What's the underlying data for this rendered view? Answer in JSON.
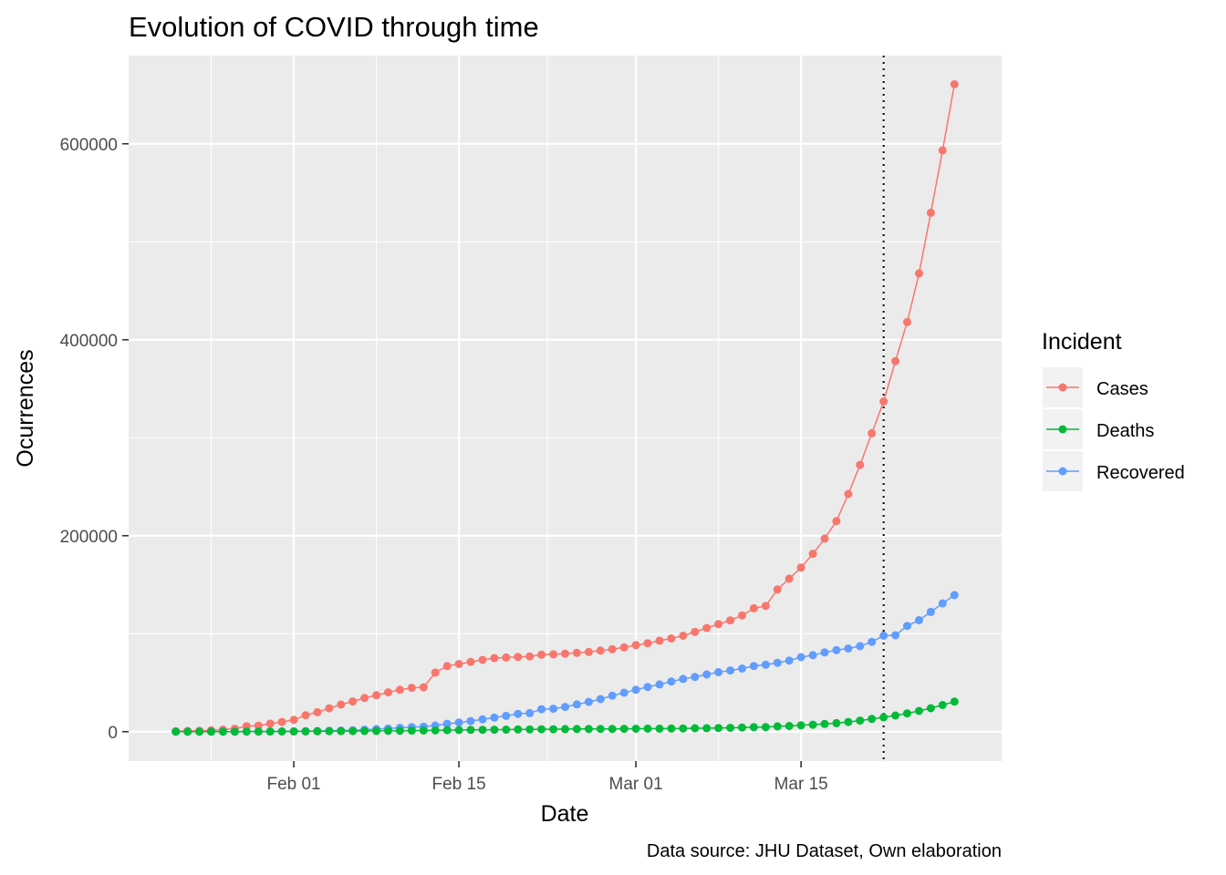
{
  "chart_data": {
    "type": "line",
    "title": "Evolution of COVID through time",
    "xlabel": "Date",
    "ylabel": "Ocurrences",
    "caption": "Data source: JHU Dataset, Own elaboration",
    "legend_title": "Incident",
    "legend_position": "right",
    "grid": true,
    "xlim": [
      "2020-01-18",
      "2020-04-01"
    ],
    "ylim": [
      -30000,
      690000
    ],
    "x_ticks": [
      {
        "date": "2020-02-01",
        "label": "Feb 01"
      },
      {
        "date": "2020-02-15",
        "label": "Feb 15"
      },
      {
        "date": "2020-03-01",
        "label": "Mar 01"
      },
      {
        "date": "2020-03-15",
        "label": "Mar 15"
      }
    ],
    "y_ticks": [
      {
        "value": 0,
        "label": "0"
      },
      {
        "value": 200000,
        "label": "200000"
      },
      {
        "value": 400000,
        "label": "400000"
      },
      {
        "value": 600000,
        "label": "600000"
      }
    ],
    "reference_line": {
      "date": "2020-03-22",
      "style": "dotted",
      "color": "#000000"
    },
    "x_start": "2020-01-22",
    "series": [
      {
        "name": "Cases",
        "color": "#F8766D",
        "values": [
          555,
          654,
          941,
          1434,
          2118,
          2927,
          5578,
          6166,
          8234,
          9927,
          12038,
          16787,
          19881,
          23892,
          27635,
          30794,
          34391,
          37120,
          40150,
          42762,
          44802,
          45221,
          60368,
          66885,
          69030,
          71224,
          73258,
          75136,
          75639,
          76197,
          76819,
          78572,
          78958,
          79561,
          80406,
          81388,
          82746,
          84112,
          86011,
          88369,
          90306,
          92840,
          95120,
          97886,
          101801,
          105847,
          109821,
          113590,
          118620,
          125875,
          128352,
          145205,
          156101,
          167454,
          181574,
          197102,
          214821,
          242570,
          272208,
          304507,
          336953,
          378231,
          418045,
          467653,
          529591,
          593291,
          660706
        ]
      },
      {
        "name": "Deaths",
        "color": "#00BA38",
        "values": [
          17,
          18,
          26,
          42,
          56,
          82,
          131,
          133,
          171,
          213,
          259,
          362,
          426,
          492,
          564,
          634,
          719,
          806,
          906,
          1013,
          1113,
          1118,
          1371,
          1523,
          1666,
          1770,
          1868,
          2007,
          2122,
          2247,
          2251,
          2458,
          2469,
          2629,
          2708,
          2770,
          2814,
          2872,
          2941,
          2996,
          3085,
          3160,
          3254,
          3348,
          3460,
          3558,
          3802,
          3988,
          4262,
          4615,
          4720,
          5404,
          5819,
          6440,
          7126,
          7905,
          8733,
          9867,
          11299,
          12973,
          14623,
          16497,
          18615,
          21181,
          23970,
          27198,
          30652
        ]
      },
      {
        "name": "Recovered",
        "color": "#619CFF",
        "values": [
          28,
          30,
          36,
          39,
          52,
          61,
          107,
          126,
          143,
          222,
          284,
          472,
          623,
          852,
          1124,
          1487,
          2011,
          2616,
          3244,
          3946,
          4683,
          5150,
          6295,
          8058,
          9395,
          10865,
          12583,
          14352,
          16121,
          18177,
          18890,
          22886,
          23394,
          25227,
          27905,
          30384,
          33277,
          36711,
          39782,
          42716,
          45602,
          48228,
          51170,
          53796,
          55865,
          58358,
          60694,
          62494,
          64404,
          67003,
          68324,
          70251,
          72624,
          76034,
          78088,
          80840,
          83207,
          84854,
          87256,
          91673,
          97882,
          98334,
          107980,
          113787,
          122150,
          130915,
          139415
        ]
      }
    ]
  }
}
